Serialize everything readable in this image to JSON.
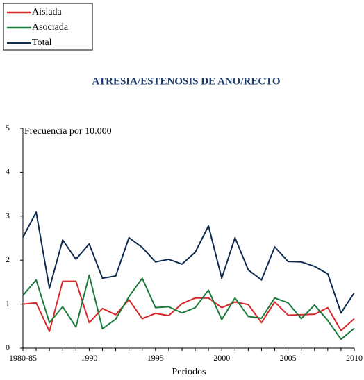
{
  "chart_data": {
    "type": "line",
    "title": "ATRESIA/ESTENOSIS DE ANO/RECTO",
    "y_label": "Frecuencia por 10.000",
    "x_label": "Periodos",
    "categories": [
      "1980-85",
      null,
      null,
      null,
      null,
      "1990",
      null,
      null,
      null,
      null,
      "1995",
      null,
      null,
      null,
      null,
      "2000",
      null,
      null,
      null,
      null,
      "2005",
      null,
      null,
      null,
      null,
      "2010"
    ],
    "ylim": [
      0,
      5
    ],
    "yticks": [
      0,
      1,
      2,
      3,
      4,
      5
    ],
    "legend": "top-left",
    "series": [
      {
        "name": "Aislada",
        "color": "#d9262b",
        "values": [
          1.0,
          1.03,
          0.38,
          1.52,
          1.52,
          0.58,
          0.9,
          0.76,
          1.1,
          0.67,
          0.79,
          0.74,
          1.01,
          1.14,
          1.14,
          0.92,
          1.05,
          0.99,
          0.58,
          1.05,
          0.75,
          0.76,
          0.77,
          0.92,
          0.4,
          0.67
        ]
      },
      {
        "name": "Asociada",
        "color": "#1a7a3a",
        "values": [
          1.2,
          1.55,
          0.58,
          0.94,
          0.48,
          1.66,
          0.44,
          0.66,
          1.17,
          1.59,
          0.92,
          0.94,
          0.8,
          0.92,
          1.32,
          0.65,
          1.14,
          0.72,
          0.68,
          1.14,
          1.03,
          0.67,
          0.98,
          0.63,
          0.2,
          0.45
        ]
      },
      {
        "name": "Total",
        "color": "#0d2a4f",
        "values": [
          2.52,
          3.09,
          1.36,
          2.46,
          2.02,
          2.37,
          1.59,
          1.64,
          2.51,
          2.29,
          1.96,
          2.02,
          1.91,
          2.18,
          2.78,
          1.59,
          2.51,
          1.78,
          1.55,
          2.3,
          1.97,
          1.96,
          1.86,
          1.69,
          0.8,
          1.26
        ]
      }
    ]
  }
}
